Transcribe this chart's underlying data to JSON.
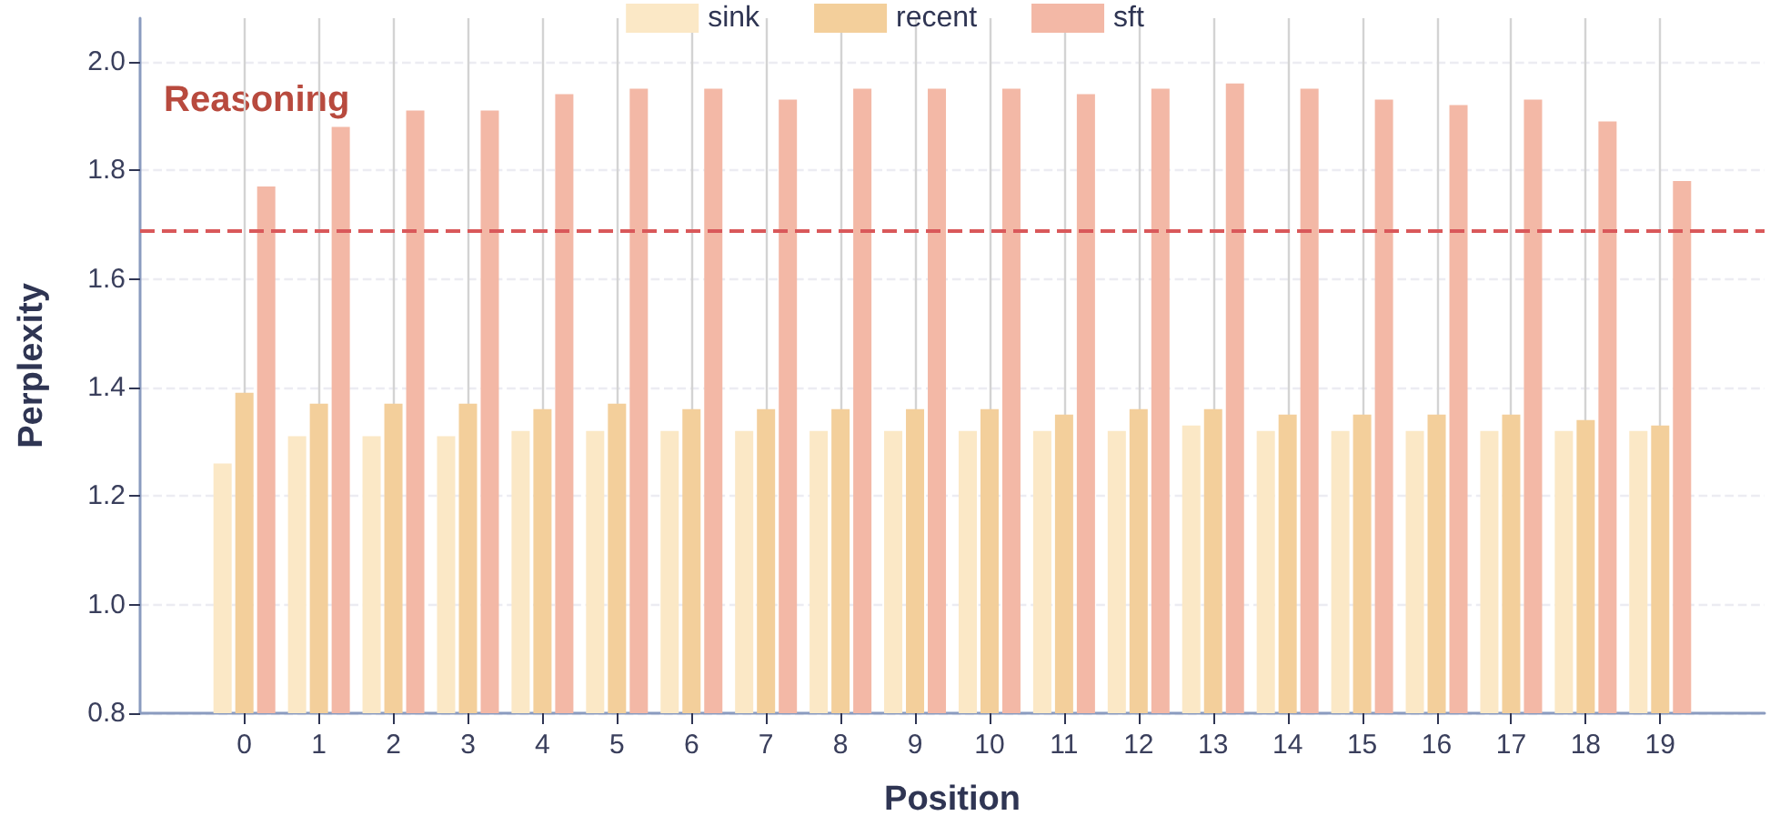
{
  "chart_data": {
    "type": "bar",
    "xlabel": "Position",
    "ylabel": "Perplexity",
    "x": [
      0,
      1,
      2,
      3,
      4,
      5,
      6,
      7,
      8,
      9,
      10,
      11,
      12,
      13,
      14,
      15,
      16,
      17,
      18,
      19
    ],
    "series": [
      {
        "name": "sink",
        "color": "#fbe8c6",
        "values": [
          1.26,
          1.31,
          1.31,
          1.31,
          1.32,
          1.32,
          1.32,
          1.32,
          1.32,
          1.32,
          1.32,
          1.32,
          1.32,
          1.33,
          1.32,
          1.32,
          1.32,
          1.32,
          1.32,
          1.32
        ]
      },
      {
        "name": "recent",
        "color": "#f3cf9b",
        "values": [
          1.39,
          1.37,
          1.37,
          1.37,
          1.36,
          1.37,
          1.36,
          1.36,
          1.36,
          1.36,
          1.36,
          1.35,
          1.36,
          1.36,
          1.35,
          1.35,
          1.35,
          1.35,
          1.34,
          1.33
        ]
      },
      {
        "name": "sft",
        "color": "#f3b8a6",
        "values": [
          1.77,
          1.88,
          1.91,
          1.91,
          1.94,
          1.95,
          1.95,
          1.93,
          1.95,
          1.95,
          1.95,
          1.94,
          1.95,
          1.96,
          1.95,
          1.93,
          1.92,
          1.93,
          1.89,
          1.78
        ]
      }
    ],
    "xlim": [
      -1.4,
      20.4
    ],
    "xticks": [
      0,
      1,
      2,
      3,
      4,
      5,
      6,
      7,
      8,
      9,
      10,
      11,
      12,
      13,
      14,
      15,
      16,
      17,
      18,
      19
    ],
    "ylim": [
      0.8,
      2.08
    ],
    "yticks": [
      0.8,
      {
        "value": 1,
        "label": "1.0"
      },
      1.2,
      1.4,
      1.6,
      1.8,
      {
        "value": 2,
        "label": "2.0"
      }
    ],
    "ref_lines": [
      {
        "axis": "y",
        "value": 1.69,
        "color": "#d9585a",
        "line_style": "dashed"
      }
    ],
    "annotations": [
      "Reasoning"
    ],
    "grid": true,
    "legend": "top"
  }
}
